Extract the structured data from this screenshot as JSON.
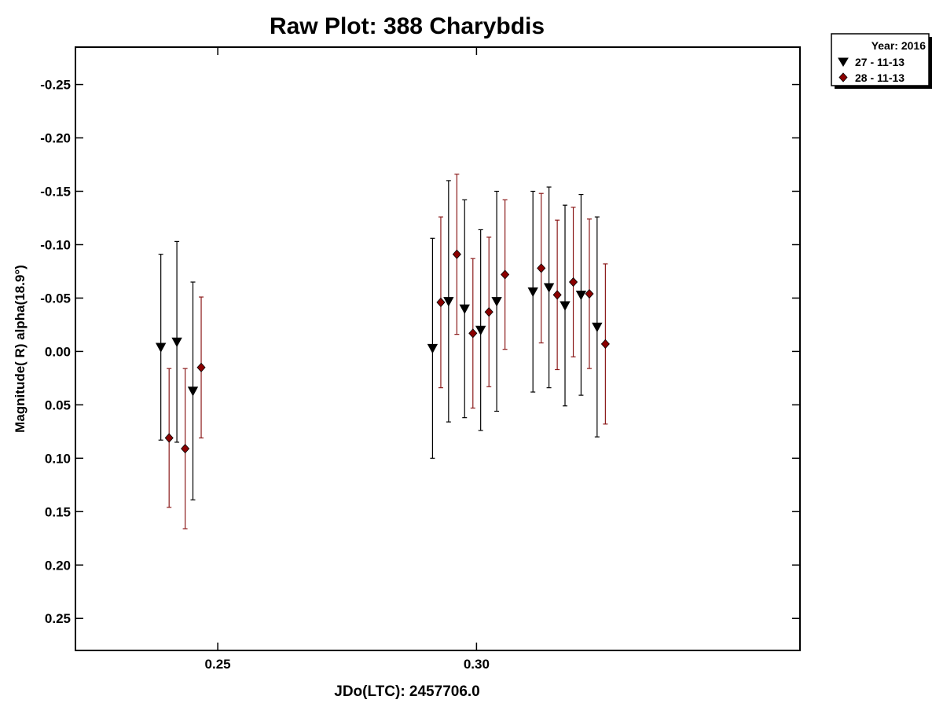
{
  "chart_data": {
    "type": "scatter",
    "title": "Raw Plot: 388 Charybdis",
    "xlabel": "JDo(LTC): 2457706.0",
    "ylabel": "Magnitude( R) alpha(18.9°)",
    "xlim": [
      0.2225,
      0.3625
    ],
    "ylim": [
      -0.285,
      0.28
    ],
    "y_inverted": true,
    "x_ticks": [
      0.25,
      0.3
    ],
    "x_tick_labels": [
      "0.25",
      "0.30"
    ],
    "y_ticks": [
      -0.25,
      -0.2,
      -0.15,
      -0.1,
      -0.05,
      0.0,
      0.05,
      0.1,
      0.15,
      0.2,
      0.25
    ],
    "y_tick_labels": [
      "-0.25",
      "-0.20",
      "-0.15",
      "-0.10",
      "-0.05",
      "0.00",
      "0.05",
      "0.10",
      "0.15",
      "0.20",
      "0.25"
    ],
    "legend": {
      "placement": "top-right outside",
      "title": "Year: 2016"
    },
    "series": [
      {
        "name": "27 - 11-13",
        "marker": "triangle-down",
        "color": "#000000",
        "errorbar_color": "#000000",
        "points": [
          {
            "x": 0.239,
            "y": -0.004,
            "err": 0.087
          },
          {
            "x": 0.2421,
            "y": -0.009,
            "err": 0.094
          },
          {
            "x": 0.2452,
            "y": 0.037,
            "err": 0.102
          },
          {
            "x": 0.2915,
            "y": -0.003,
            "err": 0.103
          },
          {
            "x": 0.2946,
            "y": -0.047,
            "err": 0.113
          },
          {
            "x": 0.2977,
            "y": -0.04,
            "err": 0.102
          },
          {
            "x": 0.3008,
            "y": -0.02,
            "err": 0.094
          },
          {
            "x": 0.3039,
            "y": -0.047,
            "err": 0.103
          },
          {
            "x": 0.3109,
            "y": -0.056,
            "err": 0.094
          },
          {
            "x": 0.314,
            "y": -0.06,
            "err": 0.094
          },
          {
            "x": 0.3171,
            "y": -0.043,
            "err": 0.094
          },
          {
            "x": 0.3202,
            "y": -0.053,
            "err": 0.094
          },
          {
            "x": 0.3233,
            "y": -0.023,
            "err": 0.103
          }
        ]
      },
      {
        "name": "28 - 11-13",
        "marker": "diamond",
        "color": "#8b0000",
        "errorbar_color": "#8b1a1a",
        "points": [
          {
            "x": 0.2406,
            "y": 0.081,
            "err": 0.065
          },
          {
            "x": 0.2437,
            "y": 0.091,
            "err": 0.075
          },
          {
            "x": 0.2468,
            "y": 0.015,
            "err": 0.066
          },
          {
            "x": 0.2931,
            "y": -0.046,
            "err": 0.08
          },
          {
            "x": 0.2962,
            "y": -0.091,
            "err": 0.075
          },
          {
            "x": 0.2993,
            "y": -0.017,
            "err": 0.07
          },
          {
            "x": 0.3024,
            "y": -0.037,
            "err": 0.07
          },
          {
            "x": 0.3055,
            "y": -0.072,
            "err": 0.07
          },
          {
            "x": 0.3125,
            "y": -0.078,
            "err": 0.07
          },
          {
            "x": 0.3156,
            "y": -0.053,
            "err": 0.07
          },
          {
            "x": 0.3187,
            "y": -0.065,
            "err": 0.07
          },
          {
            "x": 0.3218,
            "y": -0.054,
            "err": 0.07
          },
          {
            "x": 0.3249,
            "y": -0.007,
            "err": 0.075
          }
        ]
      }
    ]
  }
}
